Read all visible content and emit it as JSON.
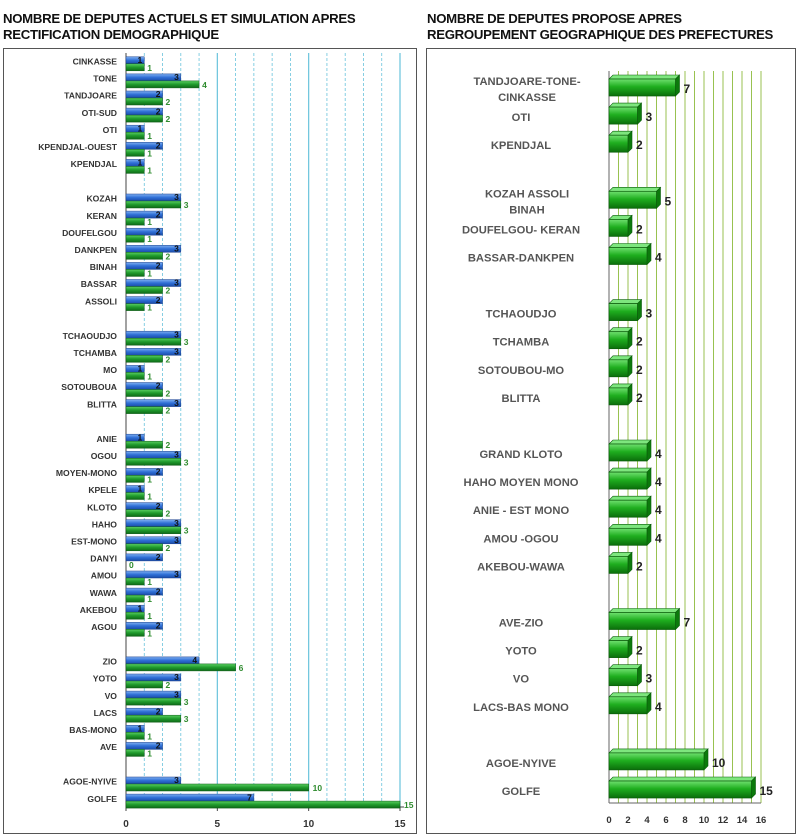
{
  "titles": {
    "left_line1": "NOMBRE DE DEPUTES ACTUELS ET SIMULATION APRES",
    "left_line2": "RECTIFICATION DEMOGRAPHIQUE",
    "right_line1": "NOMBRE DE DEPUTES PROPOSE APRES",
    "right_line2": "REGROUPEMENT GEOGRAPHIQUE DES PREFECTURES"
  },
  "colors": {
    "current": "#2f6fd6",
    "simulation": "#1f9a2c",
    "grid_left": "#69c3dc",
    "grid_right": "#8dbb3e",
    "bar3d_face": "#1fae1f"
  },
  "chart_data": [
    {
      "type": "bar",
      "orientation": "horizontal",
      "title": "NOMBRE DE DEPUTES ACTUELS ET SIMULATION APRES RECTIFICATION DEMOGRAPHIQUE",
      "xlim": [
        0,
        15
      ],
      "xticks": [
        0,
        5,
        10,
        15
      ],
      "grid": true,
      "categories": [
        "CINKASSE",
        "TONE",
        "TANDJOARE",
        "OTI-SUD",
        "OTI",
        "KPENDJAL-OUEST",
        "KPENDJAL",
        "KOZAH",
        "KERAN",
        "DOUFELGOU",
        "DANKPEN",
        "BINAH",
        "BASSAR",
        "ASSOLI",
        "TCHAOUDJO",
        "TCHAMBA",
        "MO",
        "SOTOUBOUA",
        "BLITTA",
        "ANIE",
        "OGOU",
        "MOYEN-MONO",
        "KPELE",
        "KLOTO",
        "HAHO",
        "EST-MONO",
        "DANYI",
        "AMOU",
        "WAWA",
        "AKEBOU",
        "AGOU",
        "ZIO",
        "YOTO",
        "VO",
        "LACS",
        "BAS-MONO",
        "AVE",
        "AGOE-NYIVE",
        "GOLFE"
      ],
      "group_sizes": [
        7,
        7,
        5,
        12,
        6,
        2
      ],
      "series": [
        {
          "values": [
            1,
            3,
            2,
            2,
            1,
            2,
            1,
            3,
            2,
            2,
            3,
            2,
            3,
            2,
            3,
            3,
            1,
            2,
            3,
            1,
            3,
            2,
            1,
            2,
            3,
            3,
            2,
            3,
            2,
            1,
            2,
            4,
            3,
            3,
            2,
            1,
            2,
            3,
            7
          ]
        },
        {
          "values": [
            1,
            4,
            2,
            2,
            1,
            1,
            1,
            3,
            1,
            1,
            2,
            1,
            2,
            1,
            3,
            2,
            1,
            2,
            2,
            2,
            3,
            1,
            1,
            2,
            3,
            2,
            0,
            1,
            1,
            1,
            1,
            6,
            2,
            3,
            3,
            1,
            1,
            10,
            15
          ]
        }
      ]
    },
    {
      "type": "bar",
      "orientation": "horizontal",
      "style": "3d",
      "title": "NOMBRE DE DEPUTES PROPOSE APRES REGROUPEMENT GEOGRAPHIQUE DES PREFECTURES",
      "xlim": [
        0,
        16
      ],
      "xticks": [
        0,
        2,
        4,
        6,
        8,
        10,
        12,
        14,
        16
      ],
      "grid": true,
      "groups": [
        {
          "items": [
            {
              "label": [
                "TANDJOARE-TONE-",
                "CINKASSE"
              ],
              "value": 7
            },
            {
              "label": [
                "OTI"
              ],
              "value": 3
            },
            {
              "label": [
                "KPENDJAL"
              ],
              "value": 2
            }
          ]
        },
        {
          "items": [
            {
              "label": [
                "KOZAH ASSOLI",
                "BINAH"
              ],
              "value": 5
            },
            {
              "label": [
                "DOUFELGOU- KERAN"
              ],
              "value": 2
            },
            {
              "label": [
                "BASSAR-DANKPEN"
              ],
              "value": 4
            }
          ]
        },
        {
          "items": [
            {
              "label": [
                "TCHAOUDJO"
              ],
              "value": 3
            },
            {
              "label": [
                "TCHAMBA"
              ],
              "value": 2
            },
            {
              "label": [
                "SOTOUBOU-MO"
              ],
              "value": 2
            },
            {
              "label": [
                "BLITTA"
              ],
              "value": 2
            }
          ]
        },
        {
          "items": [
            {
              "label": [
                "GRAND KLOTO"
              ],
              "value": 4
            },
            {
              "label": [
                "HAHO MOYEN MONO"
              ],
              "value": 4
            },
            {
              "label": [
                "ANIE - EST MONO"
              ],
              "value": 4
            },
            {
              "label": [
                "AMOU -OGOU"
              ],
              "value": 4
            },
            {
              "label": [
                "AKEBOU-WAWA"
              ],
              "value": 2
            }
          ]
        },
        {
          "items": [
            {
              "label": [
                "AVE-ZIO"
              ],
              "value": 7
            },
            {
              "label": [
                "YOTO"
              ],
              "value": 2
            },
            {
              "label": [
                "VO"
              ],
              "value": 3
            },
            {
              "label": [
                "LACS-BAS MONO"
              ],
              "value": 4
            }
          ]
        },
        {
          "items": [
            {
              "label": [
                "AGOE-NYIVE"
              ],
              "value": 10
            },
            {
              "label": [
                "GOLFE"
              ],
              "value": 15
            }
          ]
        }
      ]
    }
  ]
}
